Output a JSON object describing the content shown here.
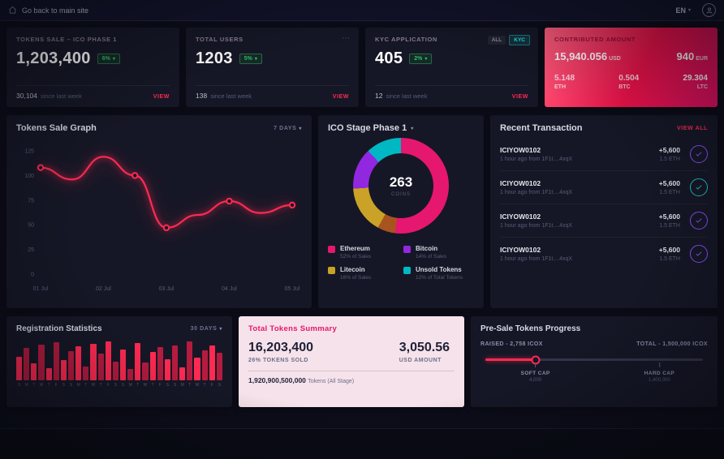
{
  "topbar": {
    "back_label": "Go back to main site",
    "language": "EN"
  },
  "stat_cards": [
    {
      "title": "TOKENS SALE – ICO PHASE 1",
      "value": "1,203,400",
      "badge": "6%",
      "sub_value": "30,104",
      "sub_label": "since last week",
      "action": "VIEW"
    },
    {
      "title": "TOTAL USERS",
      "value": "1203",
      "badge": "5%",
      "menu": "⋯",
      "sub_value": "138",
      "sub_label": "since last week",
      "action": "VIEW"
    },
    {
      "title": "KYC APPLICATION",
      "value": "405",
      "badge": "2%",
      "filter_all": "ALL",
      "filter_kyc": "KYC",
      "sub_value": "12",
      "sub_label": "since last week",
      "action": "VIEW"
    }
  ],
  "contributed": {
    "title": "CONTRIBUTED AMOUNT",
    "usd_value": "15,940.056",
    "usd_unit": "USD",
    "eur_value": "940",
    "eur_unit": "EUR",
    "eth_value": "5.148",
    "eth_unit": "ETH",
    "btc_value": "0.504",
    "btc_unit": "BTC",
    "ltc_value": "29.304",
    "ltc_unit": "LTC"
  },
  "tokens_sale_chart": {
    "type": "line",
    "title": "Tokens Sale Graph",
    "range_label": "7 DAYS",
    "color": "#ff2a51",
    "x_labels": [
      "01 Jul",
      "02 Jul",
      "03 Jul",
      "04 Jul",
      "05 Jul"
    ],
    "y_ticks": [
      0,
      25,
      50,
      75,
      100,
      125
    ],
    "ylim": [
      0,
      125
    ],
    "values": [
      108,
      96,
      119,
      100,
      47,
      60,
      74,
      62,
      70
    ],
    "marker_indices": [
      0,
      3,
      4,
      6,
      8
    ]
  },
  "ico_stage": {
    "title": "ICO Stage Phase 1",
    "center_value": "263",
    "center_label": "COINS",
    "segments": [
      {
        "label": "Ethereum",
        "note": "52% of Sales",
        "pct": 52,
        "color": "#e6176f"
      },
      {
        "label": "Bitcoin",
        "note": "14% of Sales",
        "pct": 14,
        "color": "#9128e0"
      },
      {
        "label": "Litecoin",
        "note": "16% of Sales",
        "pct": 16,
        "color": "#c9a227"
      },
      {
        "label": "Unsold Tokens",
        "note": "12% of Total Tokens",
        "pct": 12,
        "color": "#00b8c4"
      }
    ],
    "donut": [
      {
        "color": "#e6176f",
        "pct": 52
      },
      {
        "color": "#a8541f",
        "pct": 6
      },
      {
        "color": "#c9a227",
        "pct": 16
      },
      {
        "color": "#9128e0",
        "pct": 14
      },
      {
        "color": "#00b8c4",
        "pct": 12
      }
    ]
  },
  "transactions": {
    "title": "Recent Transaction",
    "action": "VIEW ALL",
    "rows": [
      {
        "id": "ICIYOW0102",
        "meta": "1 hour ago from 1F1t....4xqX",
        "amount": "+5,600",
        "eth": "1.5 ETH",
        "icon_color": "#8950fc"
      },
      {
        "id": "ICIYOW0102",
        "meta": "1 hour ago from 1F1t....4xqX",
        "amount": "+5,600",
        "eth": "1.5 ETH",
        "icon_color": "#1bc5bd"
      },
      {
        "id": "ICIYOW0102",
        "meta": "1 hour ago from 1F1t....4xqX",
        "amount": "+5,600",
        "eth": "1.5 ETH",
        "icon_color": "#8950fc"
      },
      {
        "id": "ICIYOW0102",
        "meta": "1 hour ago from 1F1t....4xqX",
        "amount": "+5,600",
        "eth": "1.5 ETH",
        "icon_color": "#8950fc"
      }
    ]
  },
  "registration": {
    "title": "Registration Statistics",
    "range_label": "30 DAYS",
    "type": "bar",
    "values": [
      58,
      80,
      42,
      88,
      30,
      95,
      50,
      72,
      85,
      35,
      90,
      66,
      97,
      47,
      76,
      28,
      92,
      44,
      70,
      82,
      52,
      87,
      33,
      96,
      57,
      74,
      86,
      68
    ],
    "day_labels": [
      "S",
      "M",
      "T",
      "W",
      "T",
      "F",
      "S",
      "S",
      "M",
      "T",
      "W",
      "T",
      "F",
      "S",
      "S",
      "M",
      "T",
      "W",
      "T",
      "F",
      "S",
      "S",
      "M",
      "T",
      "W",
      "T",
      "F",
      "S"
    ],
    "colors": [
      "#ff2a51",
      "#b51b3f"
    ]
  },
  "summary": {
    "title": "Total Tokens Summary",
    "tokens_value": "16,203,400",
    "tokens_label": "26% TOKENS SOLD",
    "usd_value": "3,050.56",
    "usd_label": "USD AMOUNT",
    "total_value": "1,920,900,500,000",
    "total_label": "Tokens (All Stage)"
  },
  "presale": {
    "title": "Pre-Sale Tokens Progress",
    "raised_label": "RAISED - 2,758 ICOX",
    "total_label": "TOTAL - 1,500,000 ICOX",
    "progress_pct": 23,
    "soft_cap": {
      "label": "SOFT CAP",
      "value": "4,000",
      "pct": 23
    },
    "hard_cap": {
      "label": "HARD CAP",
      "value": "1,400,000",
      "pct": 80
    }
  }
}
